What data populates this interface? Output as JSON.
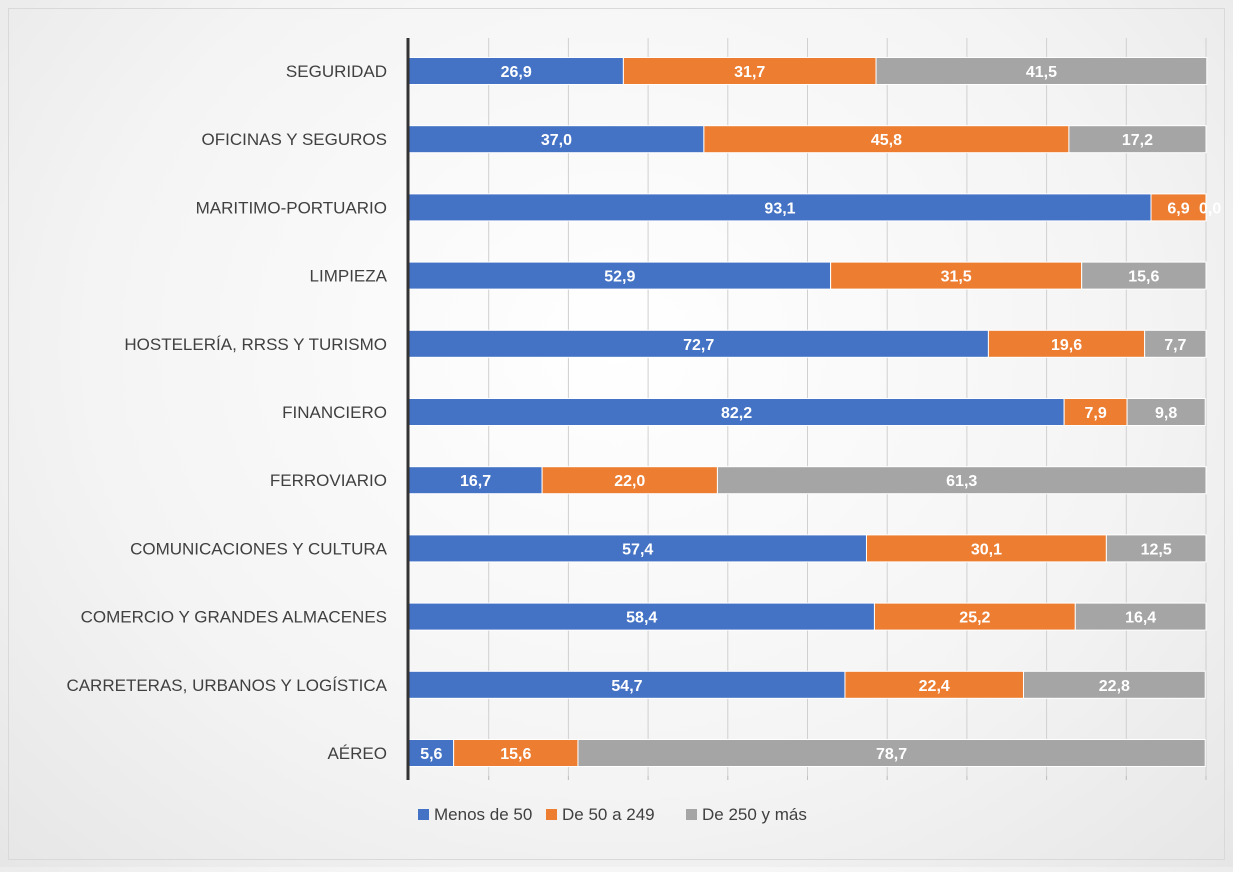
{
  "chart_data": {
    "type": "bar",
    "orientation": "horizontal",
    "stacked": "percent",
    "categories": [
      "SEGURIDAD",
      "OFICINAS Y SEGUROS",
      "MARITIMO-PORTUARIO",
      "LIMPIEZA",
      "HOSTELERÍA, RRSS Y TURISMO",
      "FINANCIERO",
      "FERROVIARIO",
      "COMUNICACIONES Y CULTURA",
      "COMERCIO Y GRANDES ALMACENES",
      "CARRETERAS, URBANOS Y LOGÍSTICA",
      "AÉREO"
    ],
    "series": [
      {
        "name": "Menos de 50",
        "color": "#4472C4",
        "values": [
          26.9,
          37.0,
          93.1,
          52.9,
          72.7,
          82.2,
          16.7,
          57.4,
          58.4,
          54.7,
          5.6
        ],
        "labels": [
          "26,9",
          "37,0",
          "93,1",
          "52,9",
          "72,7",
          "82,2",
          "16,7",
          "57,4",
          "58,4",
          "54,7",
          "5,6"
        ]
      },
      {
        "name": "De 50 a 249",
        "color": "#ED7D31",
        "values": [
          31.7,
          45.8,
          6.9,
          31.5,
          19.6,
          7.9,
          22.0,
          30.1,
          25.2,
          22.4,
          15.6
        ],
        "labels": [
          "31,7",
          "45,8",
          "6,9",
          "31,5",
          "19,6",
          "7,9",
          "22,0",
          "30,1",
          "25,2",
          "22,4",
          "15,6"
        ]
      },
      {
        "name": "De 250 y más",
        "color": "#A5A5A5",
        "values": [
          41.5,
          17.2,
          0.0,
          15.6,
          7.7,
          9.8,
          61.3,
          12.5,
          16.4,
          22.8,
          78.7
        ],
        "labels": [
          "41,5",
          "17,2",
          "0,0",
          "15,6",
          "7,7",
          "9,8",
          "61,3",
          "12,5",
          "16,4",
          "22,8",
          "78,7"
        ]
      }
    ],
    "xlim": [
      0,
      100
    ],
    "grid": true,
    "legend": "bottom",
    "title": "",
    "xlabel": "",
    "ylabel": ""
  }
}
